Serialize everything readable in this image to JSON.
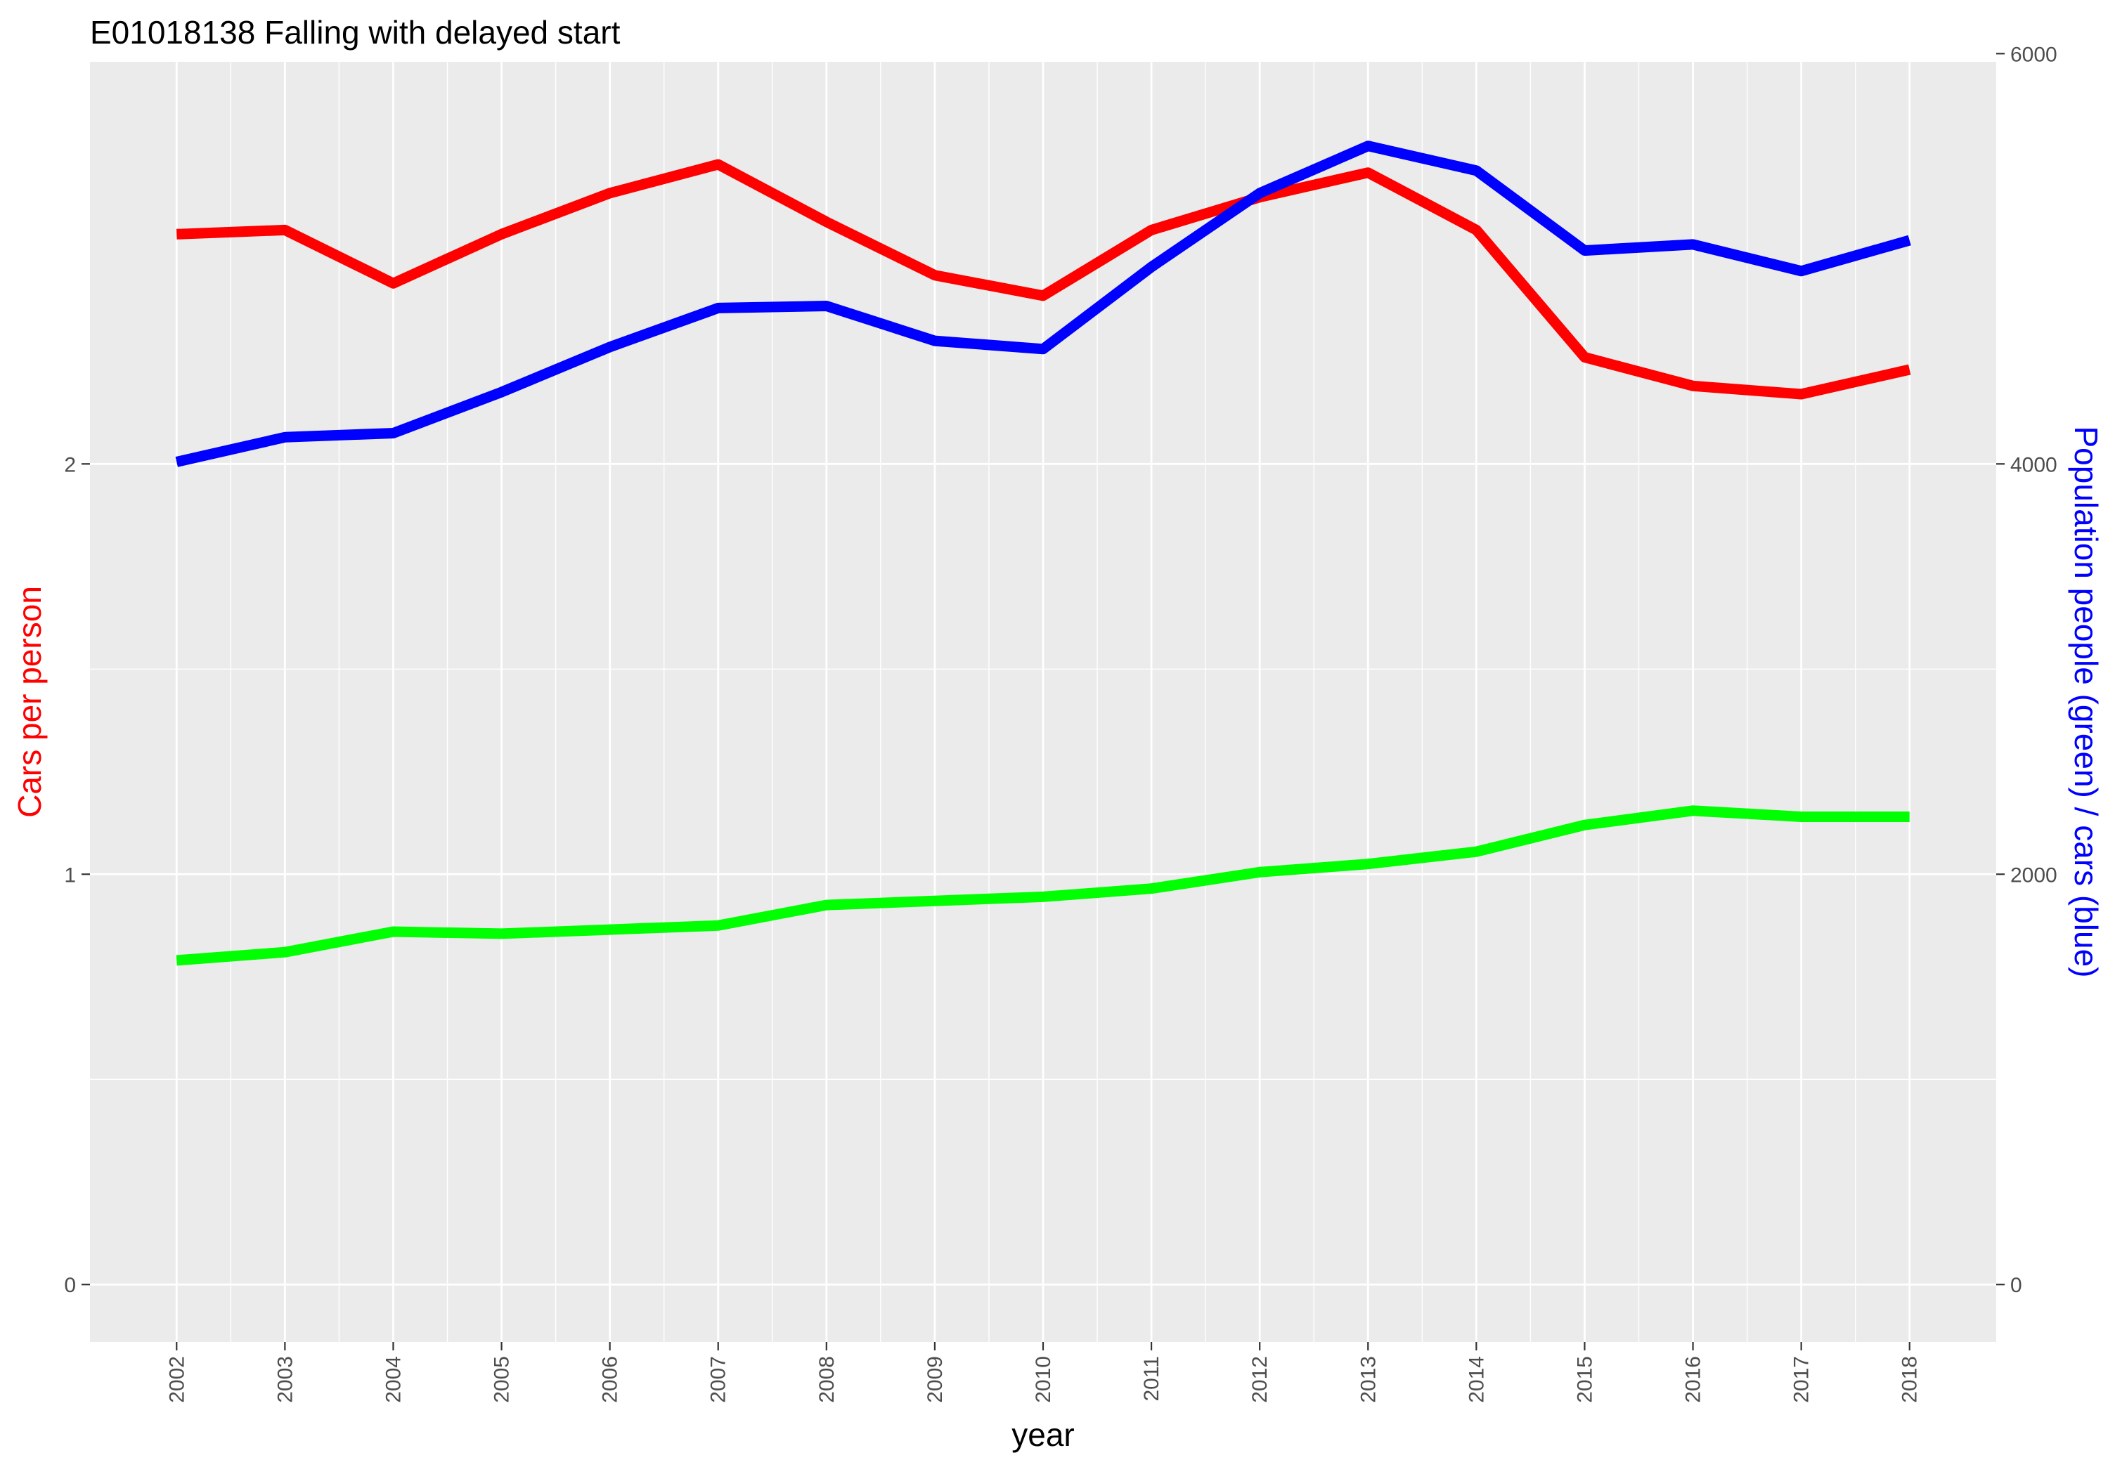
{
  "chart_data": {
    "type": "line",
    "title": "E01018138 Falling with delayed start",
    "xlabel": "year",
    "ylabel": "Cars per person",
    "ylabel_right": "Population people (green) / cars (blue)",
    "x": [
      2002,
      2003,
      2004,
      2005,
      2006,
      2007,
      2008,
      2009,
      2010,
      2011,
      2012,
      2013,
      2014,
      2015,
      2016,
      2017,
      2018
    ],
    "ylim": [
      -0.14,
      2.98
    ],
    "y2lim": [
      -280,
      5960
    ],
    "y_ticks": [
      0,
      1,
      2
    ],
    "y2_ticks": [
      0,
      2000,
      4000,
      6000
    ],
    "grid": true,
    "series": [
      {
        "axis": "left",
        "color": "#ff0000",
        "values": [
          2.56,
          2.57,
          2.44,
          2.56,
          2.66,
          2.73,
          2.59,
          2.46,
          2.41,
          2.57,
          2.65,
          2.71,
          2.57,
          2.26,
          2.19,
          2.17,
          2.23
        ]
      },
      {
        "axis": "right",
        "color": "#0000ff",
        "values": [
          4010,
          4130,
          4150,
          4350,
          4570,
          4760,
          4770,
          4600,
          4560,
          4960,
          5320,
          5550,
          5430,
          5040,
          5070,
          4940,
          5090
        ]
      },
      {
        "axis": "right",
        "color": "#00ff00",
        "values": [
          1580,
          1620,
          1720,
          1710,
          1730,
          1750,
          1850,
          1870,
          1890,
          1930,
          2010,
          2050,
          2110,
          2240,
          2310,
          2280,
          2280
        ]
      }
    ]
  }
}
